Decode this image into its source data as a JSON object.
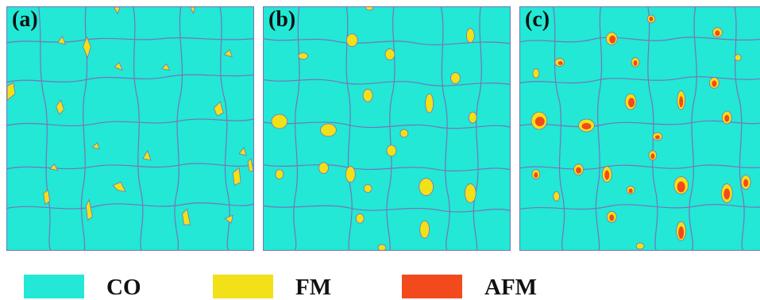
{
  "colors": {
    "matrix": "#22e8d5",
    "boundary": "#7a73b8",
    "fm": "#f2e018",
    "afm": "#f24a1c"
  },
  "panels": [
    {
      "label": "(a)"
    },
    {
      "label": "(b)"
    },
    {
      "label": "(c)"
    }
  ],
  "legend": [
    {
      "label": "CO",
      "color": "#22e8d5"
    },
    {
      "label": "FM",
      "color": "#f2e018"
    },
    {
      "label": "AFM",
      "color": "#f24a1c"
    }
  ]
}
